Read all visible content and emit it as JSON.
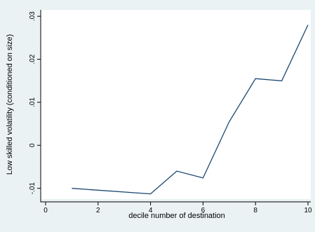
{
  "chart_data": {
    "type": "line",
    "title": "",
    "xlabel": "decile number of destination",
    "ylabel": "Low skilled volatility (conditioned on size)",
    "xlim": [
      0,
      10
    ],
    "ylim": [
      -0.0125,
      0.0315
    ],
    "xticks": [
      0,
      2,
      4,
      6,
      8,
      10
    ],
    "xtick_labels": [
      "0",
      "2",
      "4",
      "6",
      "8",
      "10"
    ],
    "yticks": [
      -0.01,
      0,
      0.01,
      0.02,
      0.03
    ],
    "ytick_labels": [
      "-.01",
      "0",
      ".01",
      ".02",
      ".03"
    ],
    "grid": false,
    "legend": "none",
    "series": [
      {
        "x": [
          1,
          4,
          5,
          6,
          7,
          8,
          9,
          10
        ],
        "values": [
          -0.01,
          -0.0113,
          -0.006,
          -0.0076,
          0.0055,
          0.0155,
          0.015,
          0.028
        ]
      }
    ],
    "colors": {
      "background": "#eaf2f3",
      "plot_area": "#ffffff",
      "line": "#1a476f"
    }
  }
}
